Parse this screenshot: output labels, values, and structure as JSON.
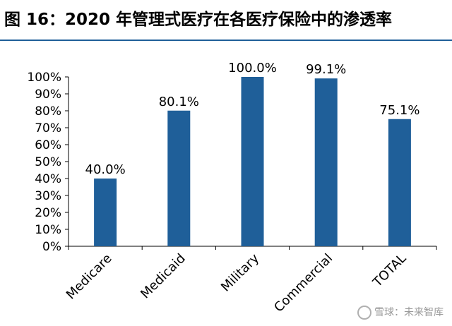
{
  "header": {
    "title": "图 16：2020 年管理式医疗在各医疗保险中的渗透率"
  },
  "watermark": {
    "text": "雪球：未来智库"
  },
  "colors": {
    "bar": "#1f5f99",
    "rule": "#1f5f99",
    "axis": "#000000"
  },
  "chart_data": {
    "type": "bar",
    "title": "",
    "xlabel": "",
    "ylabel": "",
    "categories": [
      "Medicare",
      "Medicaid",
      "Military",
      "Commercial",
      "TOTAL"
    ],
    "values": [
      40.0,
      80.1,
      100.0,
      99.1,
      75.1
    ],
    "data_labels": [
      "40.0%",
      "80.1%",
      "100.0%",
      "99.1%",
      "75.1%"
    ],
    "ylim": [
      0,
      100
    ],
    "yticks": [
      0,
      10,
      20,
      30,
      40,
      50,
      60,
      70,
      80,
      90,
      100
    ],
    "ytick_labels": [
      "0%",
      "10%",
      "20%",
      "30%",
      "40%",
      "50%",
      "60%",
      "70%",
      "80%",
      "90%",
      "100%"
    ],
    "grid": false,
    "legend": "none"
  }
}
